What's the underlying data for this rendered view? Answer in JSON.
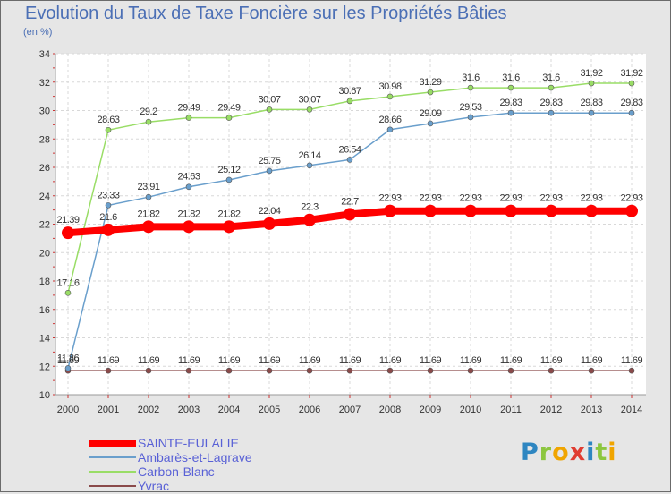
{
  "header": {
    "title": "Evolution du Taux de Taxe Foncière sur les Propriétés Bâties",
    "unit": "(en %)"
  },
  "logo": {
    "text": "Proxiti"
  },
  "chart_data": {
    "type": "line",
    "title": "Evolution du Taux de Taxe Foncière sur les Propriétés Bâties",
    "ylabel": "(en %)",
    "xlabel": "",
    "x": [
      "2000",
      "2001",
      "2002",
      "2003",
      "2004",
      "2005",
      "2006",
      "2007",
      "2008",
      "2009",
      "2010",
      "2011",
      "2012",
      "2013",
      "2014"
    ],
    "ylim": [
      10,
      34
    ],
    "yticks": [
      10,
      12,
      14,
      16,
      18,
      20,
      22,
      24,
      26,
      28,
      30,
      32,
      34
    ],
    "grid": true,
    "series": [
      {
        "name": "SAINTE-EULALIE",
        "color": "#ff0000",
        "values": [
          21.39,
          21.6,
          21.82,
          21.82,
          21.82,
          22.04,
          22.3,
          22.7,
          22.93,
          22.93,
          22.93,
          22.93,
          22.93,
          22.93,
          22.93
        ],
        "labels": [
          "21.39",
          "21.6",
          "21.82",
          "21.82",
          "21.82",
          "22.04",
          "22.3",
          "22.7",
          "22.93",
          "22.93",
          "22.93",
          "22.93",
          "22.93",
          "22.93",
          "22.93"
        ]
      },
      {
        "name": "Ambarès-et-Lagrave",
        "color": "#6a9fcc",
        "values": [
          11.86,
          23.33,
          23.91,
          24.63,
          25.12,
          25.75,
          26.14,
          26.54,
          28.66,
          29.09,
          29.53,
          29.83,
          29.83,
          29.83,
          29.83
        ],
        "labels": [
          "11.86",
          "23.33",
          "23.91",
          "24.63",
          "25.12",
          "25.75",
          "26.14",
          "26.54",
          "28.66",
          "29.09",
          "29.53",
          "29.83",
          "29.83",
          "29.83",
          "29.83"
        ]
      },
      {
        "name": "Carbon-Blanc",
        "color": "#99dd66",
        "values": [
          17.16,
          28.63,
          29.2,
          29.49,
          29.49,
          30.07,
          30.07,
          30.67,
          30.98,
          31.29,
          31.6,
          31.6,
          31.6,
          31.92,
          31.92
        ],
        "labels": [
          "17.16",
          "28.63",
          "29.2",
          "29.49",
          "29.49",
          "30.07",
          "30.07",
          "30.67",
          "30.98",
          "31.29",
          "31.6",
          "31.6",
          "31.6",
          "31.92",
          "31.92"
        ]
      },
      {
        "name": "Yvrac",
        "color": "#8a4a4a",
        "values": [
          11.69,
          11.69,
          11.69,
          11.69,
          11.69,
          11.69,
          11.69,
          11.69,
          11.69,
          11.69,
          11.69,
          11.69,
          11.69,
          11.69,
          11.69
        ],
        "labels": [
          "11.69",
          "11.69",
          "11.69",
          "11.69",
          "11.69",
          "11.69",
          "11.69",
          "11.69",
          "11.69",
          "11.69",
          "11.69",
          "11.69",
          "11.69",
          "11.69",
          "11.69"
        ]
      }
    ]
  }
}
